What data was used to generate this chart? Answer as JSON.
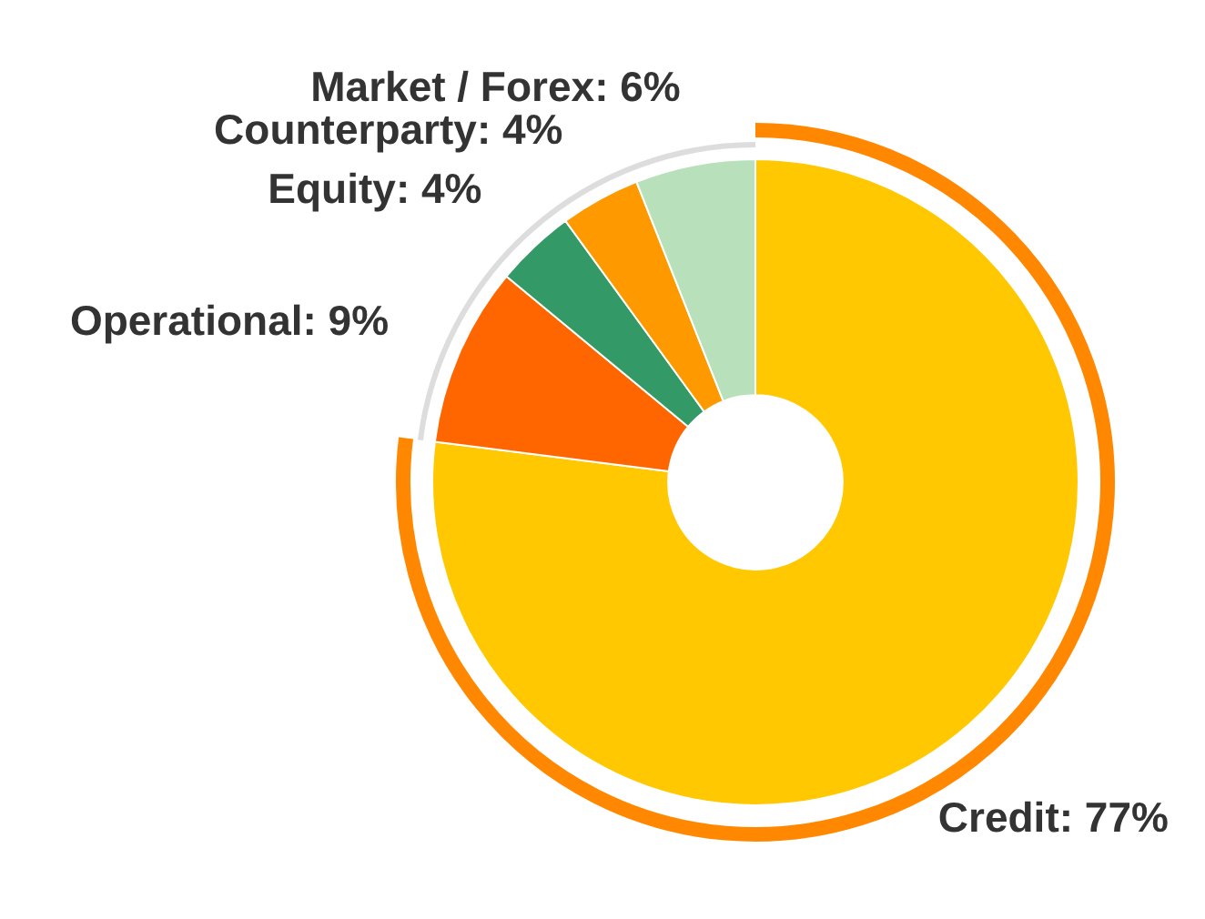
{
  "chart_data": {
    "type": "donut",
    "categories": [
      "Credit",
      "Operational",
      "Equity",
      "Counterparty",
      "Market / Forex"
    ],
    "values": [
      77,
      9,
      4,
      4,
      6
    ],
    "value_labels": [
      "77%",
      "9%",
      "4%",
      "4%",
      "6%"
    ],
    "colors": [
      "#ffc800",
      "#ff6600",
      "#339966",
      "#ff9900",
      "#b8e0ba"
    ],
    "legend": false
  }
}
